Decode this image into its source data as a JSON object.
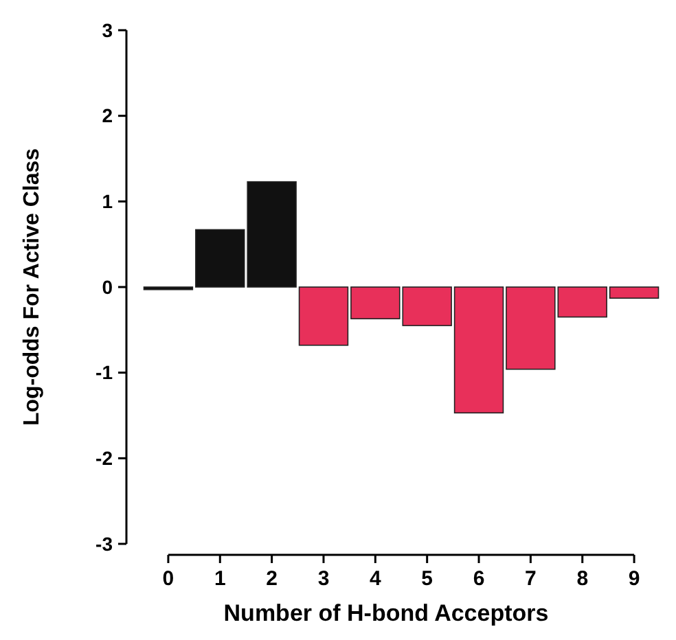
{
  "chart_data": {
    "type": "bar",
    "xlabel": "Number of H-bond Acceptors",
    "ylabel": "Log-odds For Active Class",
    "categories": [
      "0",
      "1",
      "2",
      "3",
      "4",
      "5",
      "6",
      "7",
      "8",
      "9"
    ],
    "values": [
      -0.03,
      0.67,
      1.23,
      -0.68,
      -0.37,
      -0.45,
      -1.47,
      -0.96,
      -0.35,
      -0.13
    ],
    "colors": [
      "#111111",
      "#111111",
      "#111111",
      "#e8305a",
      "#e8305a",
      "#e8305a",
      "#e8305a",
      "#e8305a",
      "#e8305a",
      "#e8305a"
    ],
    "ylim": [
      -3,
      3
    ],
    "yticks": [
      -3,
      -2,
      -1,
      0,
      1,
      2,
      3
    ],
    "grid": false
  }
}
